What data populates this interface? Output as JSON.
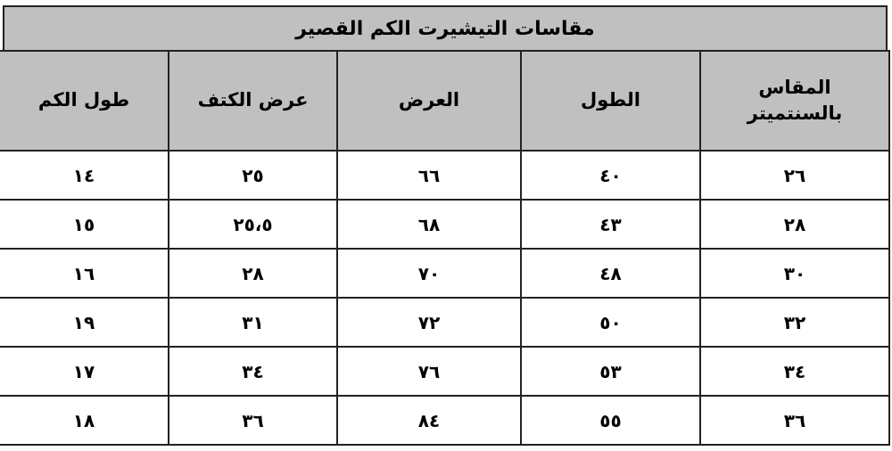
{
  "title": {
    "word1": "مقاسات",
    "word2": "التيشيرت",
    "word3": "الكم القصير"
  },
  "headers": [
    "المقاس بالسنتميتر",
    "الطول",
    "العرض",
    "عرض الكتف",
    "طول الكم"
  ],
  "rows": [
    [
      "٢٦",
      "٤٠",
      "٦٦",
      "٢٥",
      "١٤"
    ],
    [
      "٢٨",
      "٤٣",
      "٦٨",
      "٢٥،٥",
      "١٥"
    ],
    [
      "٣٠",
      "٤٨",
      "٧٠",
      "٢٨",
      "١٦"
    ],
    [
      "٣٢",
      "٥٠",
      "٧٢",
      "٣١",
      "١٩"
    ],
    [
      "٣٤",
      "٥٣",
      "٧٦",
      "٣٤",
      "١٧"
    ],
    [
      "٣٦",
      "٥٥",
      "٨٤",
      "٣٦",
      "١٨"
    ]
  ],
  "colors": {
    "header_bg": "#c0c0c0",
    "border": "#222222",
    "spellcheck": "#e02020"
  }
}
